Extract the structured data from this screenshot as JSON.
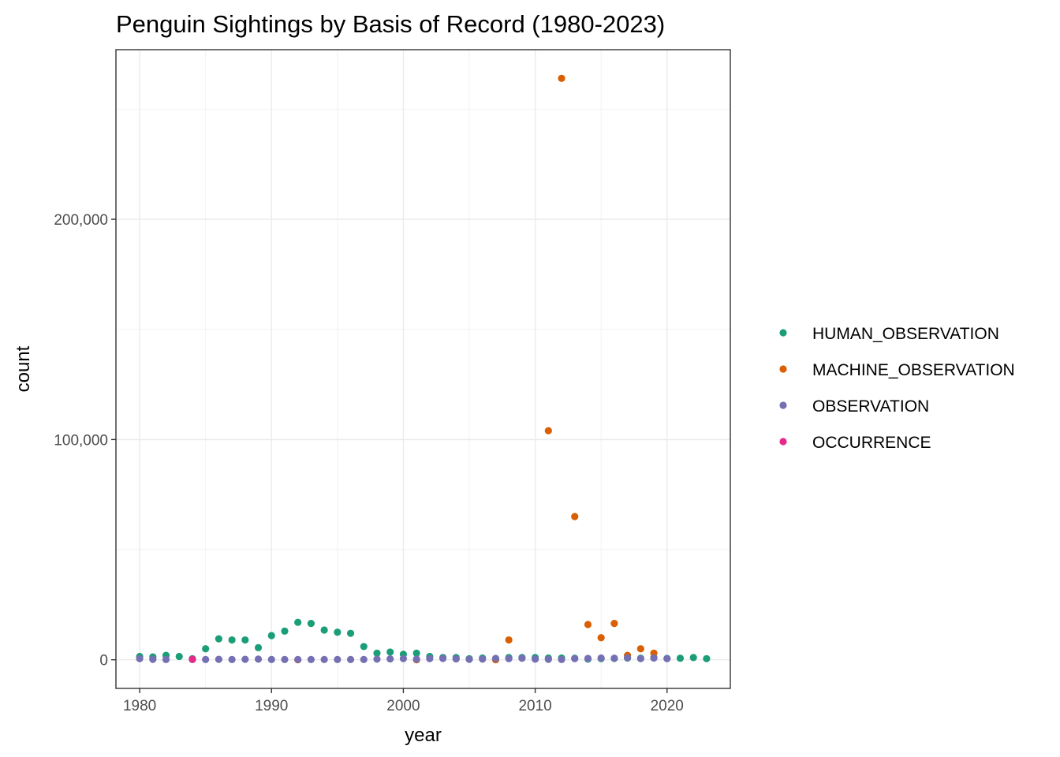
{
  "chart_data": {
    "type": "scatter",
    "title": "Penguin Sightings by Basis of Record (1980-2023)",
    "xlabel": "year",
    "ylabel": "count",
    "xlim": [
      1978.2,
      2024.8
    ],
    "ylim": [
      -13000,
      277000
    ],
    "x_ticks": [
      1980,
      1990,
      2000,
      2010,
      2020
    ],
    "x_tick_labels": [
      "1980",
      "1990",
      "2000",
      "2010",
      "2020"
    ],
    "y_ticks": [
      0,
      100000,
      200000
    ],
    "y_tick_labels": [
      "0",
      "100,000",
      "200,000"
    ],
    "grid": true,
    "legend_position": "right",
    "series": [
      {
        "name": "HUMAN_OBSERVATION",
        "color": "#1b9e77",
        "points": [
          [
            1980,
            1500
          ],
          [
            1981,
            1300
          ],
          [
            1982,
            2000
          ],
          [
            1983,
            1500
          ],
          [
            1984,
            500
          ],
          [
            1985,
            5000
          ],
          [
            1986,
            9500
          ],
          [
            1987,
            9000
          ],
          [
            1988,
            9000
          ],
          [
            1989,
            5500
          ],
          [
            1990,
            11000
          ],
          [
            1991,
            13000
          ],
          [
            1992,
            17000
          ],
          [
            1993,
            16500
          ],
          [
            1994,
            13500
          ],
          [
            1995,
            12500
          ],
          [
            1996,
            12000
          ],
          [
            1997,
            6000
          ],
          [
            1998,
            3000
          ],
          [
            1999,
            3500
          ],
          [
            2000,
            2500
          ],
          [
            2001,
            3000
          ],
          [
            2002,
            1500
          ],
          [
            2003,
            1000
          ],
          [
            2004,
            1000
          ],
          [
            2005,
            500
          ],
          [
            2006,
            800
          ],
          [
            2007,
            500
          ],
          [
            2008,
            1000
          ],
          [
            2009,
            1000
          ],
          [
            2010,
            1000
          ],
          [
            2011,
            800
          ],
          [
            2012,
            800
          ],
          [
            2013,
            700
          ],
          [
            2014,
            300
          ],
          [
            2015,
            500
          ],
          [
            2016,
            600
          ],
          [
            2017,
            800
          ],
          [
            2018,
            700
          ],
          [
            2019,
            1000
          ],
          [
            2020,
            600
          ],
          [
            2021,
            700
          ],
          [
            2022,
            1000
          ],
          [
            2023,
            500
          ]
        ]
      },
      {
        "name": "MACHINE_OBSERVATION",
        "color": "#d95f02",
        "points": [
          [
            1992,
            0
          ],
          [
            2001,
            0
          ],
          [
            2007,
            0
          ],
          [
            2008,
            9000
          ],
          [
            2011,
            104000
          ],
          [
            2012,
            264000
          ],
          [
            2013,
            65000
          ],
          [
            2014,
            16000
          ],
          [
            2015,
            10000
          ],
          [
            2016,
            16500
          ],
          [
            2017,
            2000
          ],
          [
            2018,
            5000
          ],
          [
            2019,
            3000
          ]
        ]
      },
      {
        "name": "OBSERVATION",
        "color": "#7570b3",
        "points": [
          [
            1980,
            500
          ],
          [
            1981,
            200
          ],
          [
            1982,
            100
          ],
          [
            1984,
            100
          ],
          [
            1985,
            100
          ],
          [
            1986,
            200
          ],
          [
            1987,
            100
          ],
          [
            1988,
            200
          ],
          [
            1989,
            300
          ],
          [
            1990,
            100
          ],
          [
            1991,
            100
          ],
          [
            1992,
            100
          ],
          [
            1993,
            100
          ],
          [
            1994,
            100
          ],
          [
            1995,
            100
          ],
          [
            1996,
            100
          ],
          [
            1997,
            100
          ],
          [
            1998,
            300
          ],
          [
            1999,
            400
          ],
          [
            2000,
            500
          ],
          [
            2001,
            300
          ],
          [
            2002,
            500
          ],
          [
            2003,
            600
          ],
          [
            2004,
            400
          ],
          [
            2005,
            200
          ],
          [
            2006,
            300
          ],
          [
            2007,
            600
          ],
          [
            2008,
            500
          ],
          [
            2009,
            700
          ],
          [
            2010,
            300
          ],
          [
            2011,
            200
          ],
          [
            2012,
            100
          ],
          [
            2013,
            500
          ],
          [
            2014,
            600
          ],
          [
            2015,
            800
          ],
          [
            2016,
            700
          ],
          [
            2017,
            900
          ],
          [
            2018,
            500
          ],
          [
            2019,
            800
          ],
          [
            2020,
            500
          ]
        ]
      },
      {
        "name": "OCCURRENCE",
        "color": "#e7298a",
        "points": [
          [
            1984,
            200
          ]
        ]
      }
    ]
  }
}
